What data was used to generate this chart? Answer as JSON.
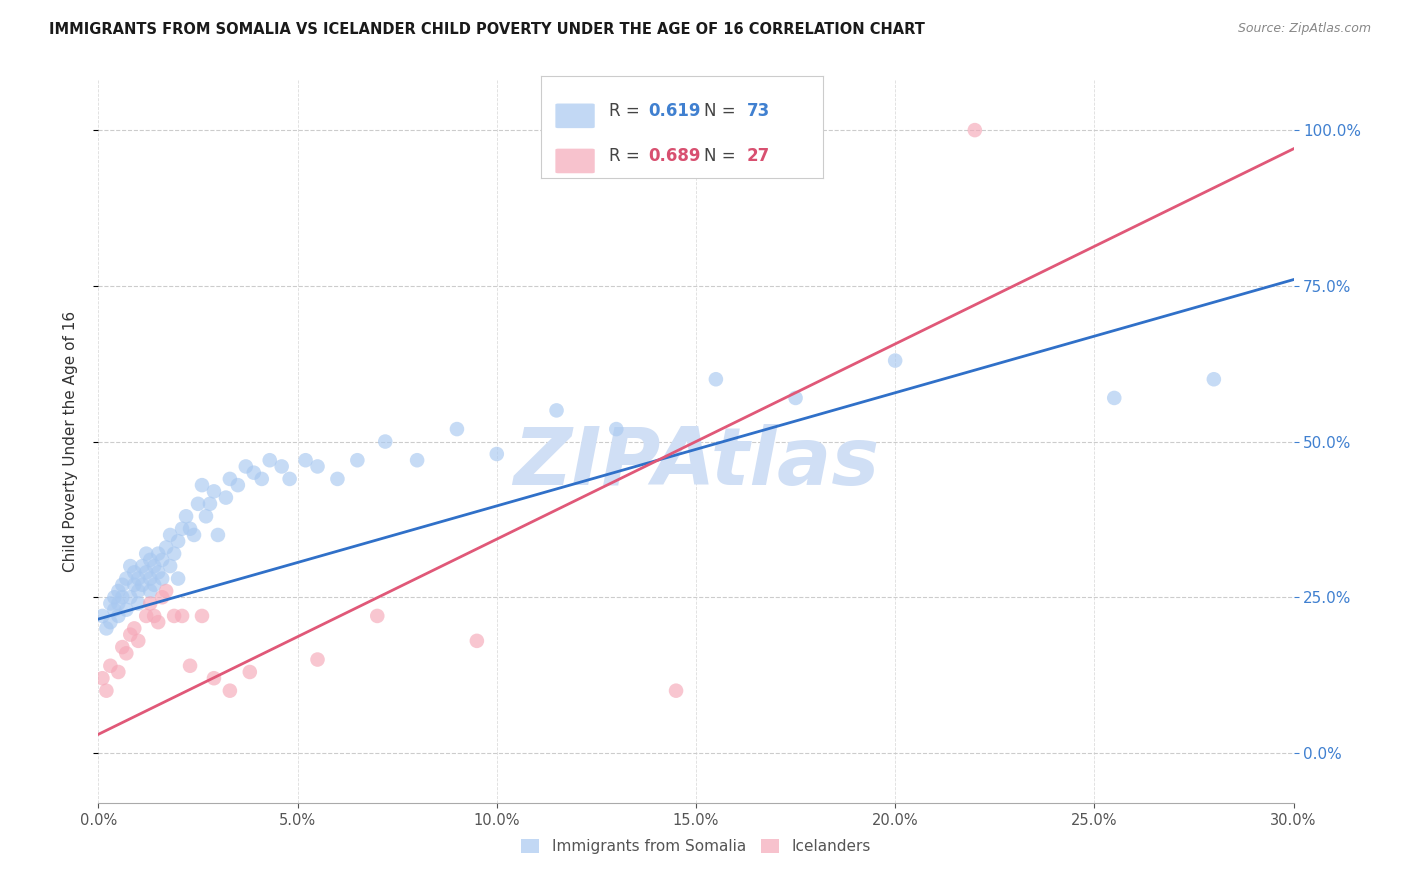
{
  "title": "IMMIGRANTS FROM SOMALIA VS ICELANDER CHILD POVERTY UNDER THE AGE OF 16 CORRELATION CHART",
  "source": "Source: ZipAtlas.com",
  "ylabel": "Child Poverty Under the Age of 16",
  "blue_R": "0.619",
  "blue_N": "73",
  "pink_R": "0.689",
  "pink_N": "27",
  "blue_color": "#A8C8F0",
  "pink_color": "#F5A8B8",
  "blue_line_color": "#3070C8",
  "pink_line_color": "#E05878",
  "blue_label_color": "#4080D0",
  "pink_label_color": "#D85070",
  "watermark": "ZIPAtlas",
  "watermark_color": "#D0DFF5",
  "legend_label_blue": "Immigrants from Somalia",
  "legend_label_pink": "Icelanders",
  "xlim": [
    0.0,
    0.3
  ],
  "ylim": [
    -0.08,
    1.08
  ],
  "ytick_locs": [
    0.0,
    0.25,
    0.5,
    0.75,
    1.0
  ],
  "xtick_locs": [
    0.0,
    0.05,
    0.1,
    0.15,
    0.2,
    0.25,
    0.3
  ],
  "blue_scatter_x": [
    0.001,
    0.002,
    0.003,
    0.003,
    0.004,
    0.004,
    0.005,
    0.005,
    0.005,
    0.006,
    0.006,
    0.007,
    0.007,
    0.008,
    0.008,
    0.009,
    0.009,
    0.01,
    0.01,
    0.01,
    0.011,
    0.011,
    0.012,
    0.012,
    0.013,
    0.013,
    0.013,
    0.014,
    0.014,
    0.015,
    0.015,
    0.016,
    0.016,
    0.017,
    0.018,
    0.018,
    0.019,
    0.02,
    0.02,
    0.021,
    0.022,
    0.023,
    0.024,
    0.025,
    0.026,
    0.027,
    0.028,
    0.029,
    0.03,
    0.032,
    0.033,
    0.035,
    0.037,
    0.039,
    0.041,
    0.043,
    0.046,
    0.048,
    0.052,
    0.055,
    0.06,
    0.065,
    0.072,
    0.08,
    0.09,
    0.1,
    0.115,
    0.13,
    0.155,
    0.175,
    0.2,
    0.255,
    0.28
  ],
  "blue_scatter_y": [
    0.22,
    0.2,
    0.24,
    0.21,
    0.25,
    0.23,
    0.26,
    0.22,
    0.24,
    0.27,
    0.25,
    0.28,
    0.23,
    0.3,
    0.25,
    0.27,
    0.29,
    0.26,
    0.28,
    0.24,
    0.3,
    0.27,
    0.29,
    0.32,
    0.28,
    0.31,
    0.26,
    0.3,
    0.27,
    0.32,
    0.29,
    0.31,
    0.28,
    0.33,
    0.3,
    0.35,
    0.32,
    0.34,
    0.28,
    0.36,
    0.38,
    0.36,
    0.35,
    0.4,
    0.43,
    0.38,
    0.4,
    0.42,
    0.35,
    0.41,
    0.44,
    0.43,
    0.46,
    0.45,
    0.44,
    0.47,
    0.46,
    0.44,
    0.47,
    0.46,
    0.44,
    0.47,
    0.5,
    0.47,
    0.52,
    0.48,
    0.55,
    0.52,
    0.6,
    0.57,
    0.63,
    0.57,
    0.6
  ],
  "pink_scatter_x": [
    0.001,
    0.002,
    0.003,
    0.005,
    0.006,
    0.007,
    0.008,
    0.009,
    0.01,
    0.012,
    0.013,
    0.014,
    0.015,
    0.016,
    0.017,
    0.019,
    0.021,
    0.023,
    0.026,
    0.029,
    0.033,
    0.038,
    0.055,
    0.07,
    0.095,
    0.145,
    0.22
  ],
  "pink_scatter_y": [
    0.12,
    0.1,
    0.14,
    0.13,
    0.17,
    0.16,
    0.19,
    0.2,
    0.18,
    0.22,
    0.24,
    0.22,
    0.21,
    0.25,
    0.26,
    0.22,
    0.22,
    0.14,
    0.22,
    0.12,
    0.1,
    0.13,
    0.15,
    0.22,
    0.18,
    0.1,
    1.0
  ],
  "blue_trend_x": [
    0.0,
    0.3
  ],
  "blue_trend_y": [
    0.215,
    0.76
  ],
  "pink_trend_x": [
    0.0,
    0.3
  ],
  "pink_trend_y": [
    0.03,
    0.97
  ]
}
